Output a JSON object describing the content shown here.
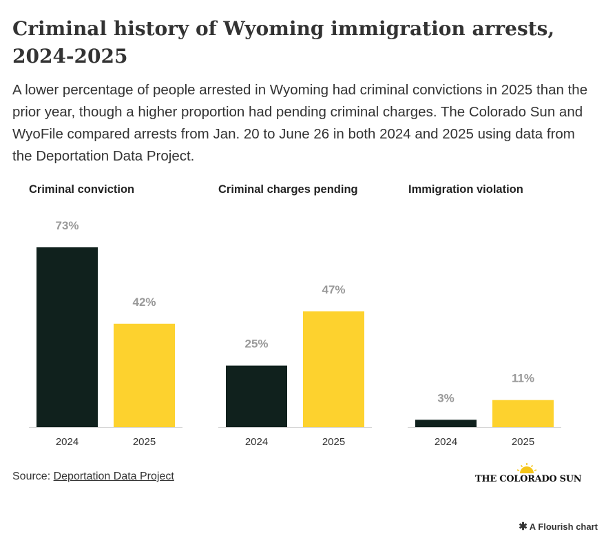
{
  "header": {
    "title": "Criminal history of Wyoming immigration arrests, 2024-2025",
    "subtitle": "A lower percentage of people arrested in Wyoming had criminal convictions in 2025 than the prior year, though a higher proportion had pending criminal charges. The Colorado Sun and WyoFile compared arrests from Jan. 20 to June 26 in both 2024 and 2025 using data from the Deportation Data Project."
  },
  "chart_data": [
    {
      "type": "bar",
      "title": "Criminal conviction",
      "categories": [
        "2024",
        "2025"
      ],
      "values": [
        73,
        42
      ],
      "labels": [
        "73%",
        "42%"
      ],
      "colors": [
        "#10211d",
        "#fdd22e"
      ],
      "ylim": [
        0,
        73
      ]
    },
    {
      "type": "bar",
      "title": "Criminal charges pending",
      "categories": [
        "2024",
        "2025"
      ],
      "values": [
        25,
        47
      ],
      "labels": [
        "25%",
        "47%"
      ],
      "colors": [
        "#10211d",
        "#fdd22e"
      ],
      "ylim": [
        0,
        73
      ]
    },
    {
      "type": "bar",
      "title": "Immigration violation",
      "categories": [
        "2024",
        "2025"
      ],
      "values": [
        3,
        11
      ],
      "labels": [
        "3%",
        "11%"
      ],
      "colors": [
        "#10211d",
        "#fdd22e"
      ],
      "ylim": [
        0,
        73
      ]
    }
  ],
  "footer": {
    "source_prefix": "Source: ",
    "source_link": "Deportation Data Project",
    "logo_text": "THE COLORADO SUN",
    "flourish_icon": "asterisk-icon",
    "flourish_text": "A Flourish chart"
  },
  "colors": {
    "dark_bar": "#10211d",
    "yellow_bar": "#fdd22e",
    "value_label": "#999999"
  }
}
